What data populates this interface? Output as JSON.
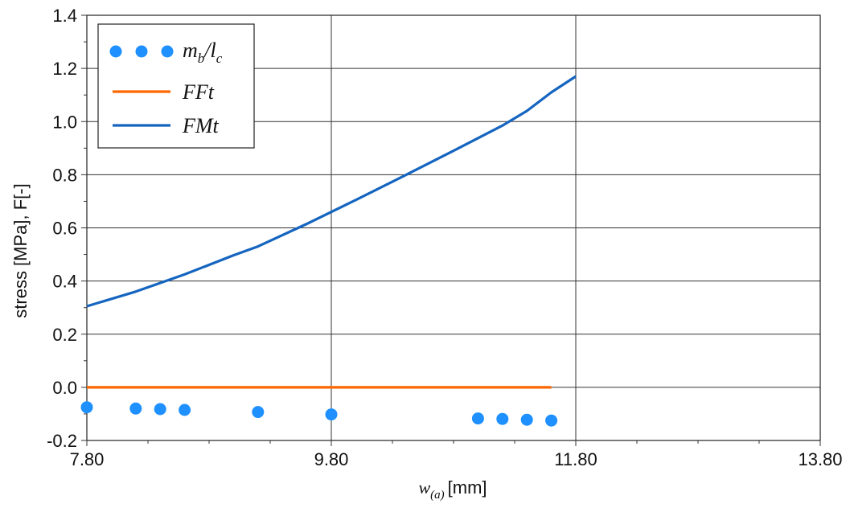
{
  "chart_data": {
    "type": "line",
    "xlabel": {
      "var": "w",
      "sub": "(a)",
      "unit": "[mm]"
    },
    "ylabel": "stress [MPa], F[-]",
    "xlim": [
      7.8,
      13.8
    ],
    "ylim": [
      -0.2,
      1.4
    ],
    "xticks": [
      7.8,
      9.8,
      11.8,
      13.8
    ],
    "xtick_labels": [
      "7.80",
      "9.80",
      "11.80",
      "13.80"
    ],
    "yticks": [
      -0.2,
      0.0,
      0.2,
      0.4,
      0.6,
      0.8,
      1.0,
      1.2,
      1.4
    ],
    "ytick_labels": [
      "-0.2",
      "0.0",
      "0.2",
      "0.4",
      "0.6",
      "0.8",
      "1.0",
      "1.2",
      "1.4"
    ],
    "grid": true,
    "legend_position": "top-left",
    "series": [
      {
        "name": "mb/lc",
        "label_main": "m",
        "label_sub1": "b",
        "label_slash": "/l",
        "label_sub2": "c",
        "kind": "scatter",
        "color": "#1e90ff",
        "points": [
          [
            7.8,
            -0.075
          ],
          [
            8.2,
            -0.08
          ],
          [
            8.4,
            -0.082
          ],
          [
            8.6,
            -0.085
          ],
          [
            9.2,
            -0.093
          ],
          [
            9.8,
            -0.102
          ],
          [
            11.0,
            -0.117
          ],
          [
            11.2,
            -0.119
          ],
          [
            11.4,
            -0.122
          ],
          [
            11.6,
            -0.125
          ]
        ]
      },
      {
        "name": "FFt",
        "kind": "line",
        "color": "#ff6600",
        "points": [
          [
            7.8,
            0.0
          ],
          [
            11.6,
            0.0
          ]
        ]
      },
      {
        "name": "FMt",
        "kind": "line",
        "color": "#1565c0",
        "points": [
          [
            7.8,
            0.305
          ],
          [
            8.2,
            0.36
          ],
          [
            8.6,
            0.425
          ],
          [
            9.0,
            0.497
          ],
          [
            9.2,
            0.53
          ],
          [
            9.6,
            0.615
          ],
          [
            10.0,
            0.705
          ],
          [
            10.4,
            0.797
          ],
          [
            10.8,
            0.89
          ],
          [
            11.2,
            0.985
          ],
          [
            11.4,
            1.04
          ],
          [
            11.6,
            1.11
          ],
          [
            11.8,
            1.17
          ]
        ]
      }
    ]
  }
}
